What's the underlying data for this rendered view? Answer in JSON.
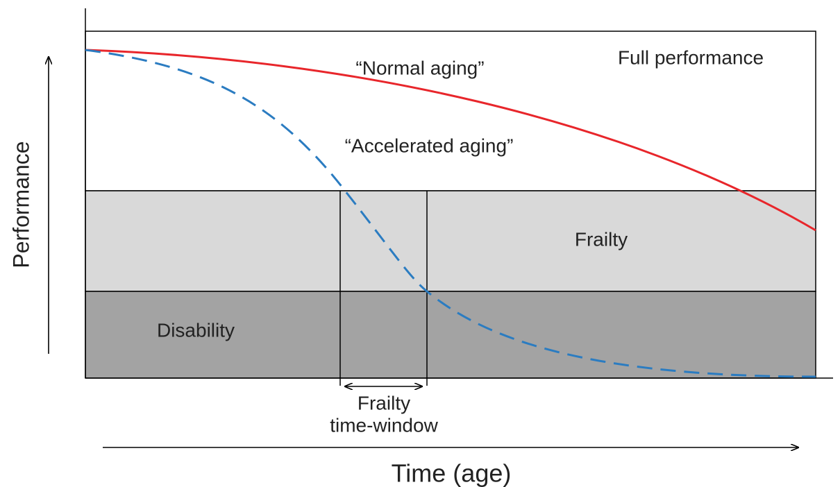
{
  "diagram": {
    "zones": {
      "full": "Full performance",
      "frailty": "Frailty",
      "disability": "Disability"
    },
    "curves": {
      "normal": "“Normal aging”",
      "accelerated": "“Accelerated aging”"
    },
    "window": [
      "Frailty",
      "time-window"
    ],
    "x_axis": "Time (age)",
    "y_axis": "Performance"
  }
}
